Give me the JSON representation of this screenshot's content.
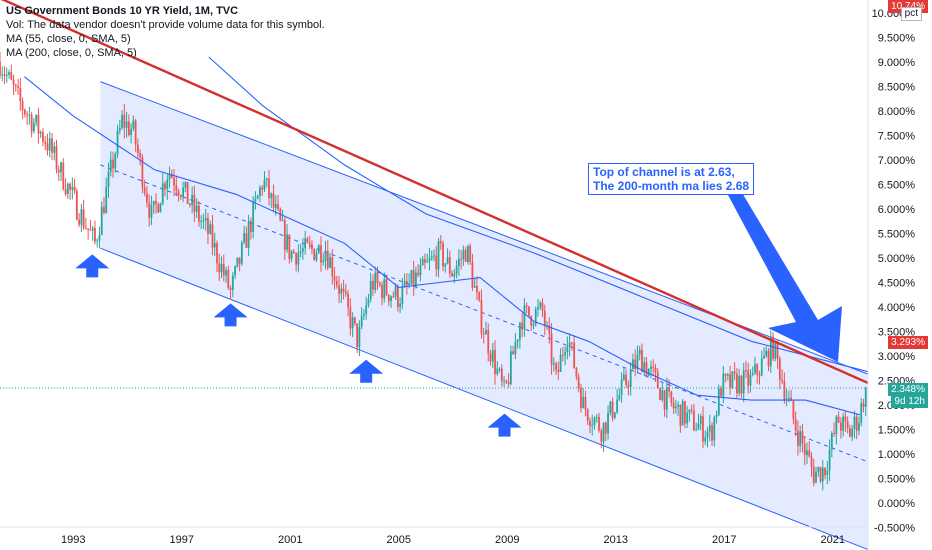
{
  "legend": {
    "title": "US Government Bonds 10 YR Yield, 1M, TVC",
    "vol": "Vol: The data vendor doesn't provide volume data for this symbol.",
    "ma1": "MA (55, close, 0, SMA, 5)",
    "ma2": "MA (200, close, 0, SMA, 5)"
  },
  "annotation": {
    "line1": "Top of channel is at 2.63,",
    "line2": "The 200-month ma lies 2.68"
  },
  "price_tags": {
    "top": "10.74%",
    "resistance": "3.293%",
    "last": "2.348%",
    "countdown": "9d 12h",
    "pct_button": "pct"
  },
  "colors": {
    "up": "#26a69a",
    "down": "#ef5350",
    "ma": "#2962ff",
    "channel_fill": "#dbe3ff",
    "resistance": "#d32f2f",
    "arrow": "#2962ff"
  },
  "chart_data": {
    "type": "candlestick",
    "title": "US Government Bonds 10 YR Yield, 1M, TVC",
    "xlabel": "",
    "ylabel": "",
    "xlim": [
      1990.3,
      2022.3
    ],
    "ylim": [
      -0.6,
      10.74
    ],
    "x_ticks": [
      "1993",
      "1997",
      "2001",
      "2005",
      "2009",
      "2013",
      "2017",
      "2021"
    ],
    "y_ticks": [
      "10.000%",
      "9.500%",
      "9.000%",
      "8.500%",
      "8.000%",
      "7.500%",
      "7.000%",
      "6.500%",
      "6.000%",
      "5.500%",
      "5.000%",
      "4.500%",
      "4.000%",
      "3.500%",
      "3.000%",
      "2.500%",
      "2.000%",
      "1.500%",
      "1.000%",
      "0.500%",
      "0.000%",
      "-0.500%"
    ],
    "last_value": 2.348,
    "yield_path": [
      [
        1990.3,
        9.0
      ],
      [
        1991.0,
        8.2
      ],
      [
        1992.0,
        7.4
      ],
      [
        1993.0,
        6.2
      ],
      [
        1993.8,
        5.3
      ],
      [
        1994.8,
        7.8
      ],
      [
        1995.2,
        7.6
      ],
      [
        1995.9,
        5.8
      ],
      [
        1996.5,
        6.8
      ],
      [
        1997.0,
        6.4
      ],
      [
        1998.0,
        5.5
      ],
      [
        1998.8,
        4.3
      ],
      [
        2000.0,
        6.6
      ],
      [
        2001.0,
        5.1
      ],
      [
        2002.3,
        5.2
      ],
      [
        2003.5,
        3.3
      ],
      [
        2004.0,
        4.5
      ],
      [
        2005.0,
        4.2
      ],
      [
        2006.5,
        5.1
      ],
      [
        2007.0,
        4.7
      ],
      [
        2007.5,
        5.2
      ],
      [
        2008.0,
        3.8
      ],
      [
        2008.9,
        2.2
      ],
      [
        2009.5,
        3.8
      ],
      [
        2010.3,
        3.9
      ],
      [
        2010.8,
        2.5
      ],
      [
        2011.2,
        3.5
      ],
      [
        2011.8,
        2.0
      ],
      [
        2012.5,
        1.5
      ],
      [
        2013.5,
        2.6
      ],
      [
        2013.9,
        3.0
      ],
      [
        2015.0,
        2.0
      ],
      [
        2016.5,
        1.4
      ],
      [
        2016.9,
        2.4
      ],
      [
        2018.0,
        2.5
      ],
      [
        2018.8,
        3.2
      ],
      [
        2019.6,
        1.6
      ],
      [
        2020.3,
        0.6
      ],
      [
        2020.7,
        0.7
      ],
      [
        2021.2,
        1.7
      ],
      [
        2021.6,
        1.4
      ],
      [
        2022.0,
        1.8
      ],
      [
        2022.2,
        2.35
      ]
    ],
    "series": [
      {
        "name": "MA (55, close, 0, SMA, 5)",
        "values": [
          [
            1991.2,
            8.7
          ],
          [
            1993.0,
            7.9
          ],
          [
            1996.0,
            6.8
          ],
          [
            1999.0,
            6.3
          ],
          [
            2001.0,
            5.8
          ],
          [
            2003.0,
            5.3
          ],
          [
            2005.0,
            4.4
          ],
          [
            2006.5,
            4.5
          ],
          [
            2008.0,
            4.6
          ],
          [
            2010.0,
            3.7
          ],
          [
            2012.0,
            3.3
          ],
          [
            2014.0,
            2.7
          ],
          [
            2016.0,
            2.2
          ],
          [
            2018.0,
            2.1
          ],
          [
            2020.0,
            2.1
          ],
          [
            2022.0,
            1.8
          ]
        ]
      },
      {
        "name": "MA (200, close, 0, SMA, 5)",
        "values": [
          [
            1998.0,
            9.1
          ],
          [
            2000.0,
            8.1
          ],
          [
            2003.0,
            6.9
          ],
          [
            2006.0,
            5.9
          ],
          [
            2010.0,
            5.1
          ],
          [
            2014.0,
            4.2
          ],
          [
            2018.0,
            3.3
          ],
          [
            2022.3,
            2.68
          ]
        ]
      }
    ],
    "channel": {
      "upper": [
        [
          1994.0,
          8.6
        ],
        [
          2022.3,
          2.63
        ]
      ],
      "lower": [
        [
          1994.0,
          5.2
        ],
        [
          2022.3,
          -0.95
        ]
      ],
      "midline": [
        [
          1994.0,
          6.9
        ],
        [
          2022.3,
          0.84
        ]
      ]
    },
    "resistance_line": [
      [
        1990.3,
        10.3
      ],
      [
        2022.3,
        2.45
      ]
    ],
    "arrows_at": [
      [
        1993.7,
        4.85
      ],
      [
        1998.8,
        3.85
      ],
      [
        2003.8,
        2.7
      ],
      [
        2008.9,
        1.6
      ]
    ]
  }
}
